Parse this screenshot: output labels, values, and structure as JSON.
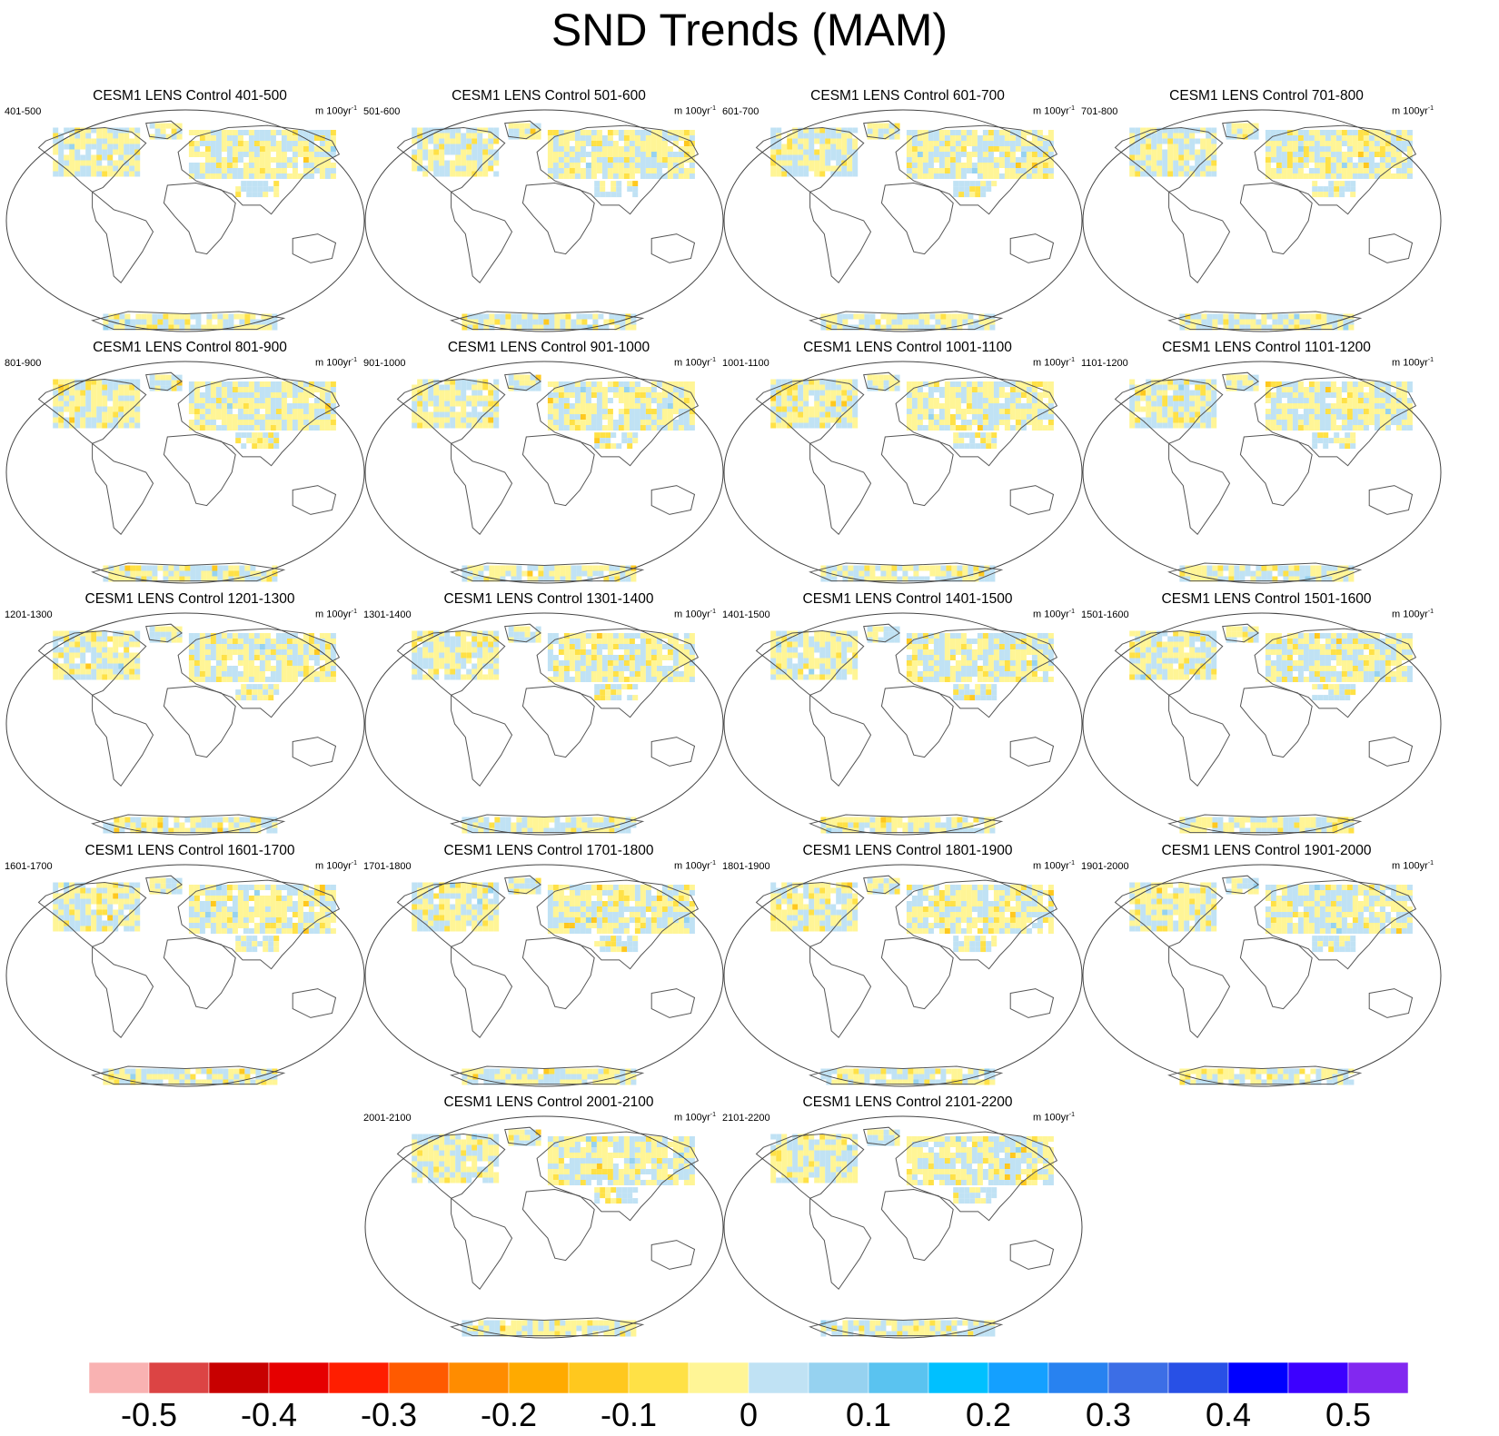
{
  "title": "SND Trends (MAM)",
  "units_label": "m 100yr",
  "units_exponent": "-1",
  "chart_data": {
    "type": "heatmap",
    "title": "SND Trends (MAM)",
    "variable": "SND",
    "season": "MAM",
    "projection": "Robinson (global)",
    "panels": [
      {
        "title": "CESM1 LENS Control 401-500",
        "left_label": "401-500"
      },
      {
        "title": "CESM1 LENS Control 501-600",
        "left_label": "501-600"
      },
      {
        "title": "CESM1 LENS Control 601-700",
        "left_label": "601-700"
      },
      {
        "title": "CESM1 LENS Control 701-800",
        "left_label": "701-800"
      },
      {
        "title": "CESM1 LENS Control 801-900",
        "left_label": "801-900"
      },
      {
        "title": "CESM1 LENS Control 901-1000",
        "left_label": "901-1000"
      },
      {
        "title": "CESM1 LENS Control 1001-1100",
        "left_label": "1001-1100"
      },
      {
        "title": "CESM1 LENS Control 1101-1200",
        "left_label": "1101-1200"
      },
      {
        "title": "CESM1 LENS Control 1201-1300",
        "left_label": "1201-1300"
      },
      {
        "title": "CESM1 LENS Control 1301-1400",
        "left_label": "1301-1400"
      },
      {
        "title": "CESM1 LENS Control 1401-1500",
        "left_label": "1401-1500"
      },
      {
        "title": "CESM1 LENS Control 1501-1600",
        "left_label": "1501-1600"
      },
      {
        "title": "CESM1 LENS Control 1601-1700",
        "left_label": "1601-1700"
      },
      {
        "title": "CESM1 LENS Control 1701-1800",
        "left_label": "1701-1800"
      },
      {
        "title": "CESM1 LENS Control 1801-1900",
        "left_label": "1801-1900"
      },
      {
        "title": "CESM1 LENS Control 1901-2000",
        "left_label": "1901-2000"
      },
      {
        "title": "CESM1 LENS Control 2001-2100",
        "left_label": "2001-2100"
      },
      {
        "title": "CESM1 LENS Control 2101-2200",
        "left_label": "2101-2200"
      }
    ],
    "colorbar": {
      "range": [
        -0.55,
        0.55
      ],
      "step": 0.05,
      "tick_labels": [
        "-0.5",
        "-0.4",
        "-0.3",
        "-0.2",
        "-0.1",
        "0",
        "0.1",
        "0.2",
        "0.3",
        "0.4",
        "0.5"
      ],
      "colors": [
        "#f9b2b2",
        "#dc4444",
        "#c80000",
        "#e60000",
        "#ff1e00",
        "#ff5a00",
        "#ff8c00",
        "#ffaa00",
        "#ffc81e",
        "#ffe146",
        "#fff596",
        "#c0e2f4",
        "#96d2f0",
        "#5ac3f0",
        "#00c0ff",
        "#14a0ff",
        "#2882f0",
        "#3c6ee6",
        "#2850e6",
        "#0000ff",
        "#3c00ff",
        "#8228f0"
      ]
    }
  }
}
